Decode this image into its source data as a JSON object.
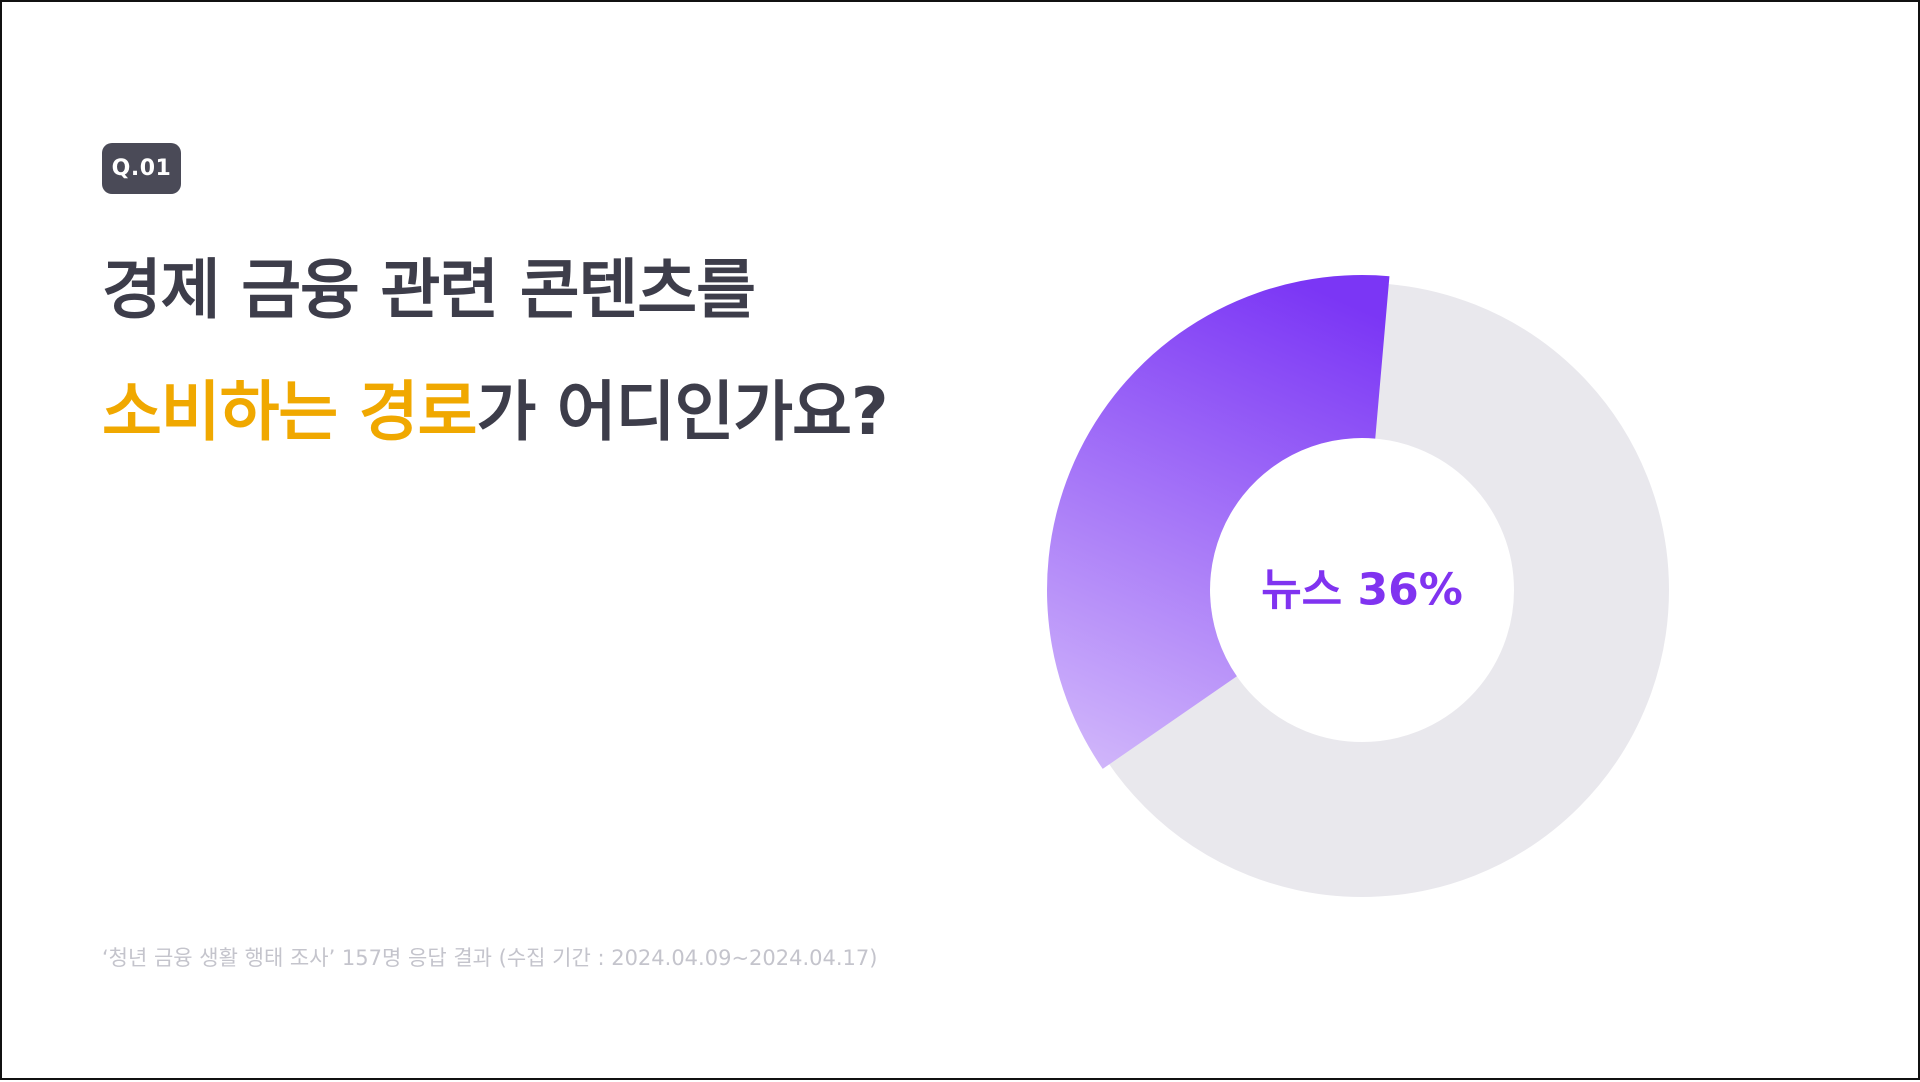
{
  "question": {
    "badge": "Q.01",
    "title_line1": "경제 금융 관련 콘텐츠를",
    "title_line2_highlight": "소비하는 경로",
    "title_line2_rest": "가 어디인가요?"
  },
  "footnote": "‘청년 금융 생활 행태 조사’ 157명 응답 결과 (수집 기간 : 2024.04.09~2024.04.17)",
  "colors": {
    "title": "#3d3d4a",
    "highlight": "#f0a800",
    "badge_bg": "#4a4a57",
    "track": "#e9e8ed",
    "accent_dark": "#7b36f5",
    "accent_light": "#d7c0fb",
    "label": "#8033f0"
  },
  "chart_data": {
    "type": "pie",
    "variant": "donut",
    "slices": [
      {
        "label": "뉴스",
        "value": 36
      }
    ],
    "center_label": "뉴스 36%",
    "unit": "%"
  }
}
